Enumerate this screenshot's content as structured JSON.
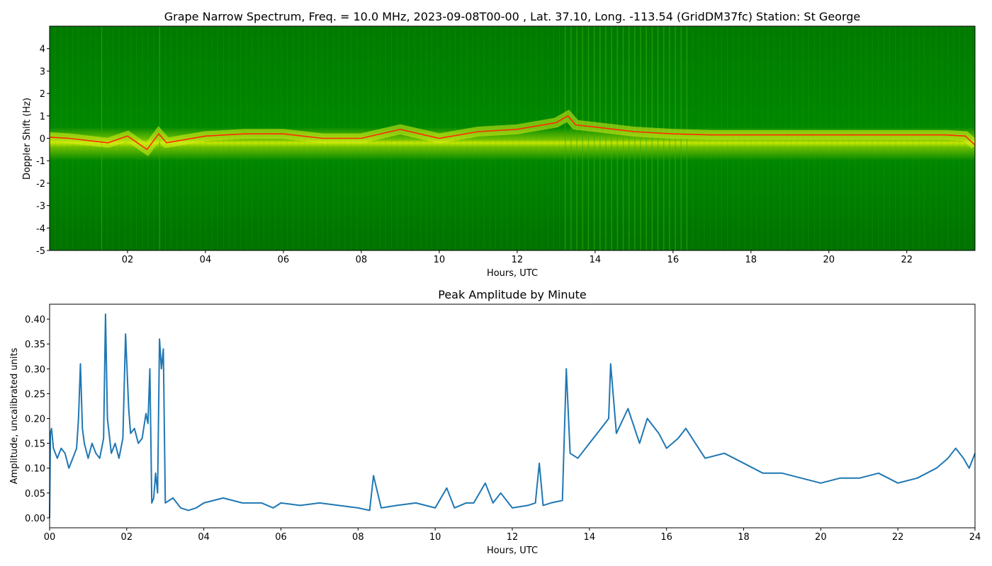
{
  "chart_data": [
    {
      "type": "heatmap",
      "title": "Grape Narrow Spectrum, Freq. = 10.0 MHz, 2023-09-08T00-00 , Lat.  37.10, Long. -113.54 (GridDM37fc) Station: St George",
      "xlabel": "Hours, UTC",
      "ylabel": "Doppler Shift (Hz)",
      "xlim": [
        0,
        23.75
      ],
      "ylim": [
        -5,
        5
      ],
      "x_ticks": [
        "02",
        "04",
        "06",
        "08",
        "10",
        "12",
        "14",
        "16",
        "18",
        "20",
        "22"
      ],
      "y_ticks": [
        "4",
        "3",
        "2",
        "1",
        "0",
        "-1",
        "-2",
        "-3",
        "-4",
        "-5"
      ],
      "colors": {
        "background": "#007a00",
        "mid": "#c8e600",
        "peak": "#ff2a00"
      },
      "grid": false,
      "peak_doppler": {
        "x": [
          0,
          0.5,
          1,
          1.5,
          2,
          2.5,
          2.8,
          3,
          4,
          5,
          6,
          7,
          8,
          9,
          10,
          11,
          12,
          13,
          13.3,
          13.5,
          14,
          15,
          16,
          17,
          18,
          19,
          20,
          21,
          22,
          23,
          23.5,
          23.75
        ],
        "y": [
          0.05,
          0.0,
          -0.1,
          -0.2,
          0.1,
          -0.5,
          0.2,
          -0.2,
          0.1,
          0.2,
          0.2,
          0.0,
          0.0,
          0.4,
          0.0,
          0.3,
          0.4,
          0.7,
          1.0,
          0.6,
          0.5,
          0.3,
          0.2,
          0.15,
          0.15,
          0.15,
          0.15,
          0.15,
          0.15,
          0.15,
          0.1,
          -0.3
        ]
      }
    },
    {
      "type": "line",
      "title": "Peak Amplitude by Minute",
      "xlabel": "Hours, UTC",
      "ylabel": "Amplitude, uncalibrated units",
      "xlim": [
        0,
        24
      ],
      "ylim": [
        -0.02,
        0.43
      ],
      "x_ticks": [
        "00",
        "02",
        "04",
        "06",
        "08",
        "10",
        "12",
        "14",
        "16",
        "18",
        "20",
        "22",
        "24"
      ],
      "y_ticks": [
        "0.00",
        "0.05",
        "0.10",
        "0.15",
        "0.20",
        "0.25",
        "0.30",
        "0.35",
        "0.40"
      ],
      "color": "#1f77b4",
      "grid": false,
      "x": [
        0,
        0.02,
        0.05,
        0.1,
        0.2,
        0.3,
        0.4,
        0.5,
        0.6,
        0.7,
        0.75,
        0.8,
        0.85,
        0.9,
        1.0,
        1.1,
        1.2,
        1.3,
        1.4,
        1.45,
        1.5,
        1.6,
        1.7,
        1.8,
        1.9,
        1.97,
        2.05,
        2.1,
        2.2,
        2.3,
        2.4,
        2.5,
        2.55,
        2.6,
        2.65,
        2.7,
        2.75,
        2.8,
        2.85,
        2.9,
        2.95,
        3.0,
        3.2,
        3.4,
        3.6,
        3.8,
        4.0,
        4.5,
        5.0,
        5.5,
        5.8,
        6.0,
        6.5,
        7.0,
        7.5,
        8.0,
        8.3,
        8.4,
        8.6,
        9.0,
        9.5,
        10.0,
        10.3,
        10.5,
        10.8,
        11.0,
        11.3,
        11.5,
        11.7,
        12.0,
        12.4,
        12.6,
        12.7,
        12.8,
        13.0,
        13.3,
        13.4,
        13.5,
        13.7,
        14.0,
        14.3,
        14.5,
        14.55,
        14.7,
        15.0,
        15.3,
        15.5,
        15.8,
        16.0,
        16.3,
        16.5,
        17.0,
        17.5,
        18.0,
        18.5,
        19.0,
        19.5,
        20.0,
        20.5,
        21.0,
        21.5,
        22.0,
        22.5,
        23.0,
        23.3,
        23.5,
        23.7,
        23.85,
        24.0
      ],
      "y": [
        0.0,
        0.17,
        0.18,
        0.14,
        0.12,
        0.14,
        0.13,
        0.1,
        0.12,
        0.14,
        0.2,
        0.31,
        0.18,
        0.15,
        0.12,
        0.15,
        0.13,
        0.12,
        0.16,
        0.41,
        0.2,
        0.13,
        0.15,
        0.12,
        0.16,
        0.37,
        0.22,
        0.17,
        0.18,
        0.15,
        0.16,
        0.21,
        0.19,
        0.3,
        0.03,
        0.04,
        0.09,
        0.05,
        0.36,
        0.3,
        0.34,
        0.03,
        0.04,
        0.02,
        0.015,
        0.02,
        0.03,
        0.04,
        0.03,
        0.03,
        0.02,
        0.03,
        0.025,
        0.03,
        0.025,
        0.02,
        0.015,
        0.085,
        0.02,
        0.025,
        0.03,
        0.02,
        0.06,
        0.02,
        0.03,
        0.03,
        0.07,
        0.03,
        0.05,
        0.02,
        0.025,
        0.03,
        0.11,
        0.025,
        0.03,
        0.035,
        0.3,
        0.13,
        0.12,
        0.15,
        0.18,
        0.2,
        0.31,
        0.17,
        0.22,
        0.15,
        0.2,
        0.17,
        0.14,
        0.16,
        0.18,
        0.12,
        0.13,
        0.11,
        0.09,
        0.09,
        0.08,
        0.07,
        0.08,
        0.08,
        0.09,
        0.07,
        0.08,
        0.1,
        0.12,
        0.14,
        0.12,
        0.1,
        0.13
      ]
    }
  ]
}
